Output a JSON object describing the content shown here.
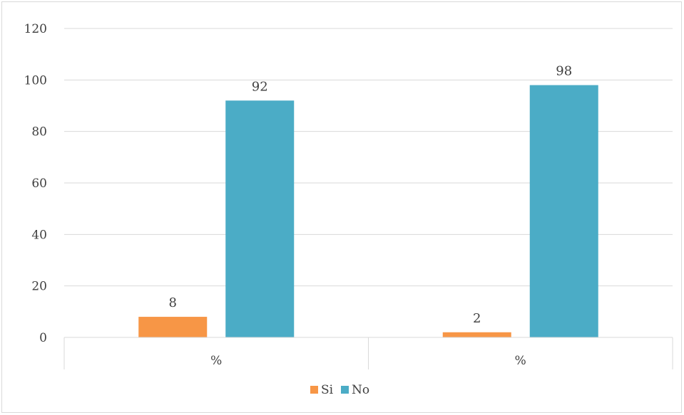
{
  "chart_data": {
    "type": "bar",
    "categories": [
      "%",
      "%"
    ],
    "series": [
      {
        "name": "Si",
        "values": [
          8,
          2
        ],
        "color": "#F79646"
      },
      {
        "name": "No",
        "values": [
          92,
          98
        ],
        "color": "#4BACC6"
      }
    ],
    "ylim": [
      0,
      120
    ],
    "yticks": [
      0,
      20,
      40,
      60,
      80,
      100,
      120
    ],
    "grid": true,
    "legend": "bottom",
    "data_labels": true
  }
}
